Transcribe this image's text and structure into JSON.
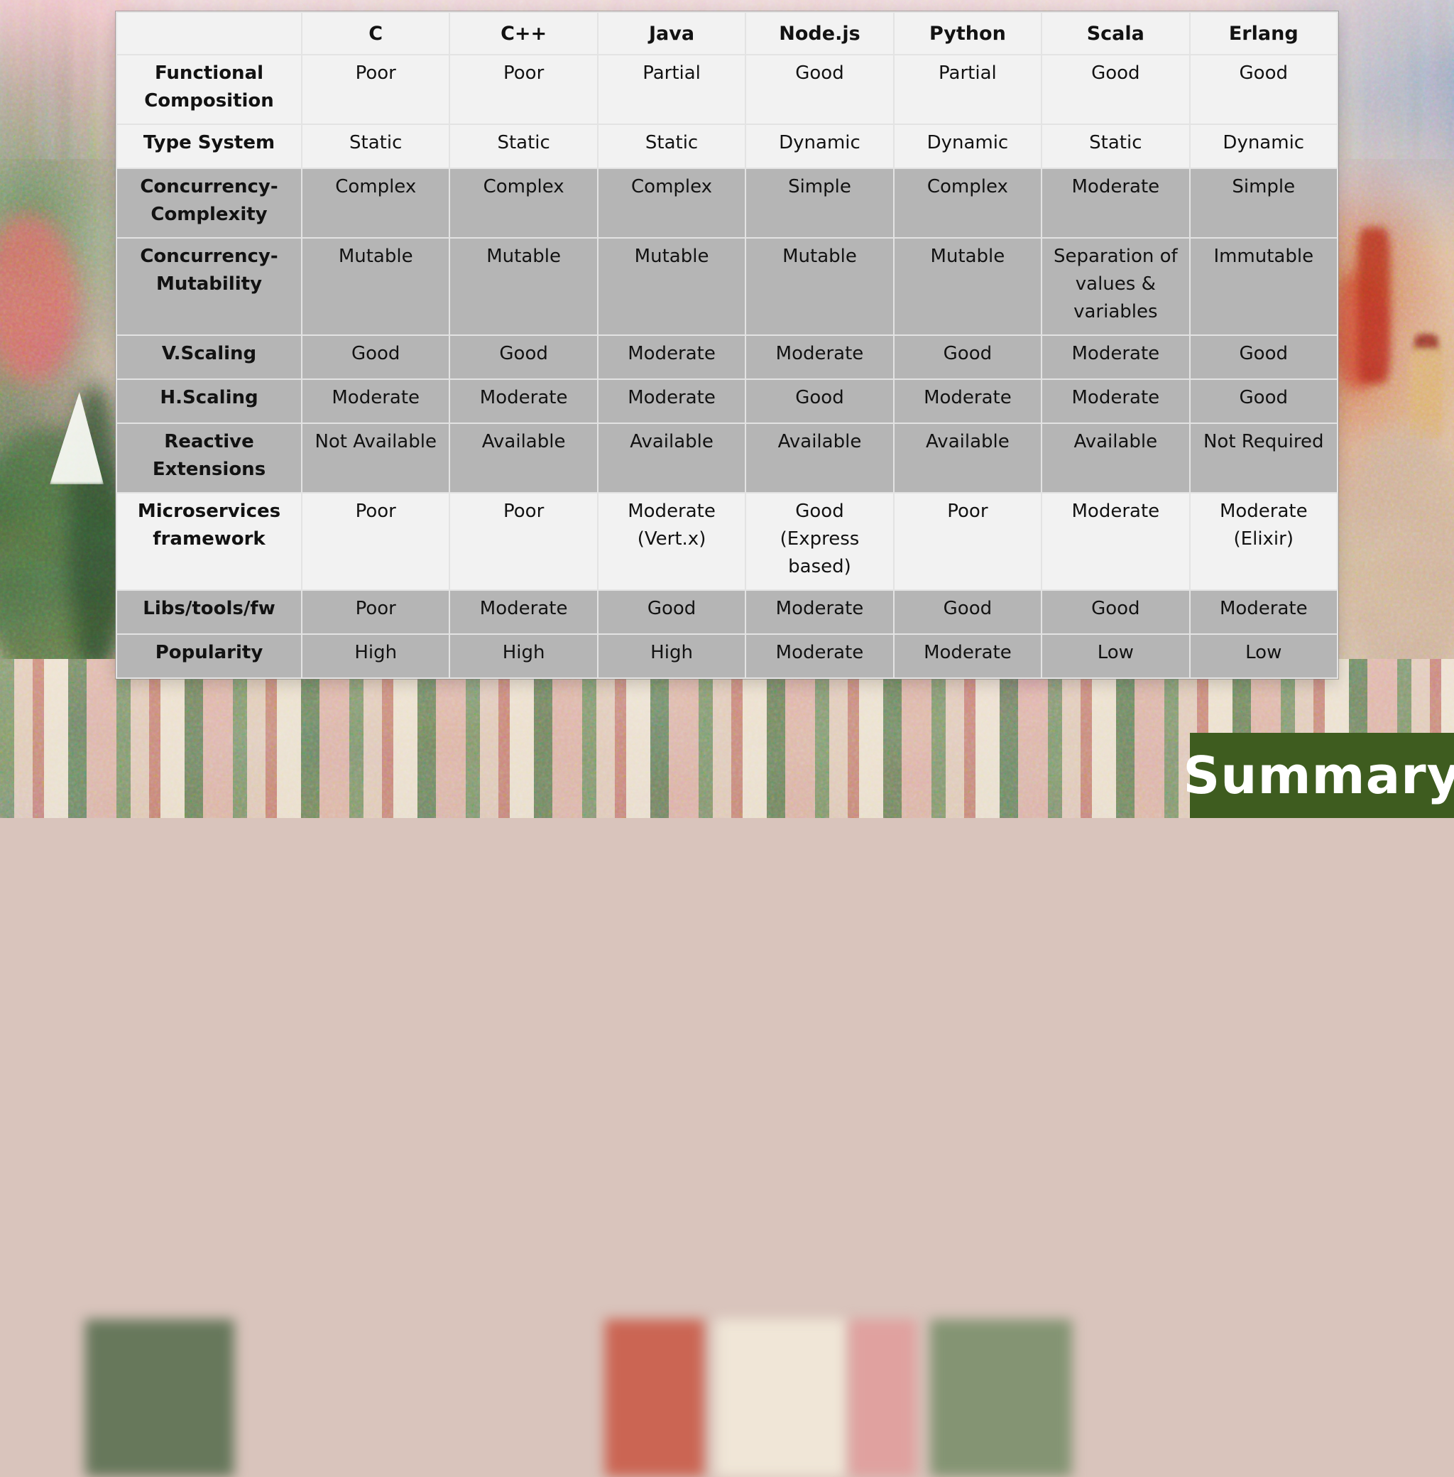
{
  "colors": {
    "row_light": "#f2f2f2",
    "row_gray": "#b5b5b5",
    "border": "#e3e3e3",
    "text": "#121212",
    "summary_bg": "#3e5c1f",
    "summary_text": "#ffffff"
  },
  "summary": {
    "label": "Summary"
  },
  "table": {
    "columns": [
      "",
      "C",
      "C++",
      "Java",
      "Node.js",
      "Python",
      "Scala",
      "Erlang"
    ],
    "rows": [
      {
        "label": "Functional Composition",
        "shade": "light",
        "cells": [
          "Poor",
          "Poor",
          "Partial",
          "Good",
          "Partial",
          "Good",
          "Good"
        ]
      },
      {
        "label": "Type System",
        "shade": "light",
        "cells": [
          "Static",
          "Static",
          "Static",
          "Dynamic",
          "Dynamic",
          "Static",
          "Dynamic"
        ]
      },
      {
        "label": "Concurrency-Complexity",
        "shade": "gray",
        "cells": [
          "Complex",
          "Complex",
          "Complex",
          "Simple",
          "Complex",
          "Moderate",
          "Simple"
        ]
      },
      {
        "label": "Concurrency-Mutability",
        "shade": "gray",
        "cells": [
          "Mutable",
          "Mutable",
          "Mutable",
          "Mutable",
          "Mutable",
          "Separation of values & variables",
          "Immutable"
        ]
      },
      {
        "label": "V.Scaling",
        "shade": "gray",
        "cells": [
          "Good",
          "Good",
          "Moderate",
          "Moderate",
          "Good",
          "Moderate",
          "Good"
        ]
      },
      {
        "label": "H.Scaling",
        "shade": "gray",
        "cells": [
          "Moderate",
          "Moderate",
          "Moderate",
          "Good",
          "Moderate",
          "Moderate",
          "Good"
        ]
      },
      {
        "label": "Reactive Extensions",
        "shade": "gray",
        "cells": [
          "Not Available",
          "Available",
          "Available",
          "Available",
          "Available",
          "Available",
          "Not Required"
        ]
      },
      {
        "label": "Microservices framework",
        "shade": "light",
        "cells": [
          "Poor",
          "Poor",
          "Moderate (Vert.x)",
          "Good (Express based)",
          "Poor",
          "Moderate",
          "Moderate (Elixir)"
        ]
      },
      {
        "label": "Libs/tools/fw",
        "shade": "gray",
        "cells": [
          "Poor",
          "Moderate",
          "Good",
          "Moderate",
          "Good",
          "Good",
          "Moderate"
        ]
      },
      {
        "label": "Popularity",
        "shade": "gray",
        "cells": [
          "High",
          "High",
          "High",
          "Moderate",
          "Moderate",
          "Low",
          "Low"
        ]
      }
    ]
  }
}
